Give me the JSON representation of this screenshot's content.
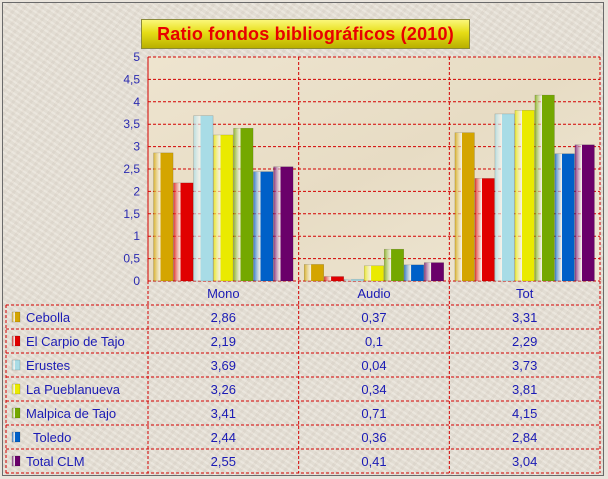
{
  "chart_data": {
    "type": "bar",
    "title": "Ratio fondos bibliográficos (2010)",
    "categories": [
      "Mono",
      "Audio",
      "Tot"
    ],
    "ylim": [
      0,
      5
    ],
    "yticks": [
      "0",
      "0,5",
      "1",
      "1,5",
      "2",
      "2,5",
      "3",
      "3,5",
      "4",
      "4,5",
      "5"
    ],
    "grid": true,
    "legend": "data-table-left",
    "series": [
      {
        "name": "Cebolla",
        "color": "#d4a500",
        "values": [
          2.86,
          0.37,
          3.31
        ],
        "labels": [
          "2,86",
          "0,37",
          "3,31"
        ]
      },
      {
        "name": "El Carpio de Tajo",
        "color": "#e00000",
        "values": [
          2.19,
          0.1,
          2.29
        ],
        "labels": [
          "2,19",
          "0,1",
          "2,29"
        ]
      },
      {
        "name": "Erustes",
        "color": "#a8dce6",
        "values": [
          3.69,
          0.04,
          3.73
        ],
        "labels": [
          "3,69",
          "0,04",
          "3,73"
        ]
      },
      {
        "name": "La Pueblanueva",
        "color": "#eaea00",
        "values": [
          3.26,
          0.34,
          3.81
        ],
        "labels": [
          "3,26",
          "0,34",
          "3,81"
        ]
      },
      {
        "name": "Malpica de Tajo",
        "color": "#74a800",
        "values": [
          3.41,
          0.71,
          4.15
        ],
        "labels": [
          "3,41",
          "0,71",
          "4,15"
        ]
      },
      {
        "name": "  Toledo",
        "color": "#0060c8",
        "values": [
          2.44,
          0.36,
          2.84
        ],
        "labels": [
          "2,44",
          "0,36",
          "2,84"
        ]
      },
      {
        "name": "Total CLM",
        "color": "#6a006a",
        "values": [
          2.55,
          0.41,
          3.04
        ],
        "labels": [
          "2,55",
          "0,41",
          "3,04"
        ]
      }
    ]
  }
}
